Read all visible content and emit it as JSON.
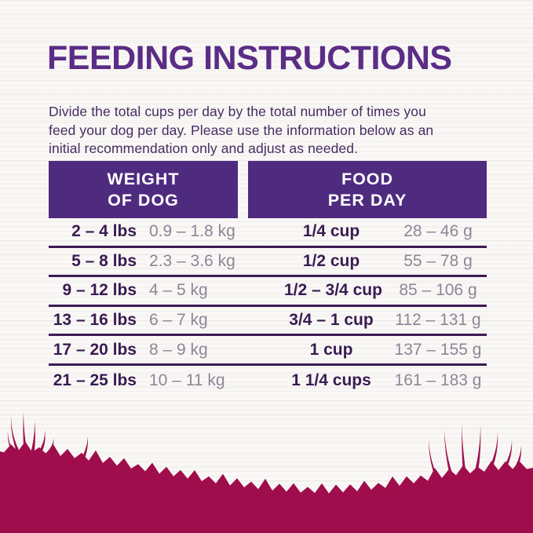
{
  "title": "FEEDING INSTRUCTIONS",
  "description": {
    "lines": [
      "Divide the total cups per day by the total number of times you",
      "feed your dog per day. Please use the information below as an",
      "initial recommendation only and adjust as needed."
    ]
  },
  "table": {
    "headers": {
      "weight": {
        "line1": "WEIGHT",
        "line2": "OF DOG"
      },
      "food": {
        "line1": "FOOD",
        "line2": "PER DAY"
      }
    },
    "rows": [
      {
        "lbs": "2 – 4 lbs",
        "kg": "0.9 – 1.8 kg",
        "cups": "1/4 cup",
        "grams": "28 – 46 g"
      },
      {
        "lbs": "5 – 8 lbs",
        "kg": "2.3 – 3.6 kg",
        "cups": "1/2 cup",
        "grams": "55 – 78 g"
      },
      {
        "lbs": "9 – 12 lbs",
        "kg": "4 – 5 kg",
        "cups": "1/2 – 3/4 cup",
        "grams": "85 – 106 g"
      },
      {
        "lbs": "13 – 16 lbs",
        "kg": "6 – 7 kg",
        "cups": "3/4 – 1 cup",
        "grams": "112 – 131 g"
      },
      {
        "lbs": "17 – 20 lbs",
        "kg": "8 – 9 kg",
        "cups": "1 cup",
        "grams": "137 – 155 g"
      },
      {
        "lbs": "21 – 25 lbs",
        "kg": "10 – 11 kg",
        "cups": "1 1/4 cups",
        "grams": "161 – 183 g"
      }
    ]
  },
  "colors": {
    "title_purple": "#5b2d86",
    "body_purple": "#472b63",
    "header_bg": "#4f2b80",
    "header_text": "#ffffff",
    "row_bold_text": "#3a1b52",
    "row_muted_text": "#8e8598",
    "divider": "#3a1b52",
    "grass": "#a00d4c",
    "background": "#f9f8f6"
  }
}
